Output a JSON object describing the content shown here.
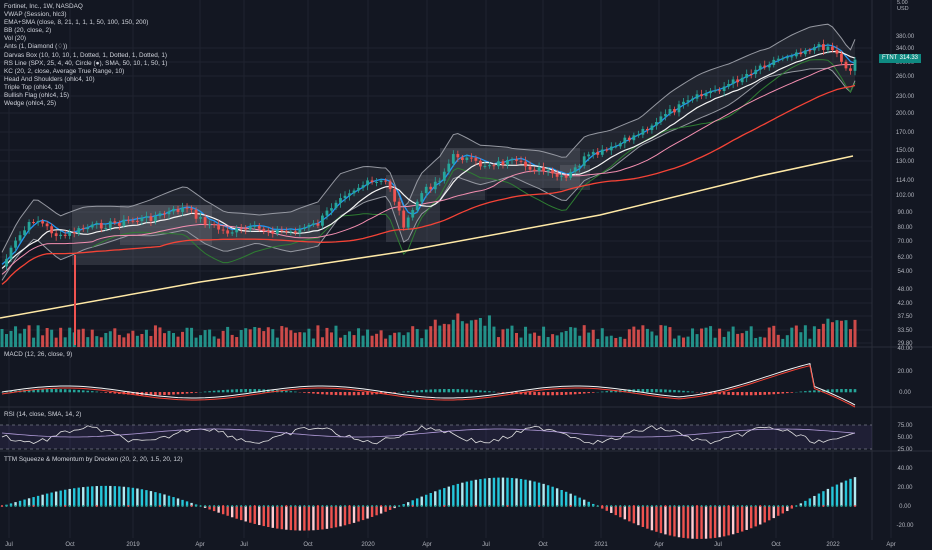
{
  "legend": {
    "title": "Fortinet, Inc., 1W, NASDAQ",
    "indicators": [
      "VWAP (Session, hlc3)",
      "EMA+SMA (close, 8, 21, 1, 1, 1, 50, 100, 150, 200)",
      "BB (20, close, 2)",
      "Vol (20)",
      "Ants (1, Diamond (♢))",
      "Darvas Box (10, 10, 10, 1, Dotted, 1, Dotted, 1, Dotted, 1)",
      "RS Line (SPX, 25, 4, 40, Circle (●), SMA, 50, 10, 1, 50, 1)",
      "KC (20, 2, close, Average True Range, 10)",
      "Head And Shoulders (ohlc4, 10)",
      "Triple Top (ohlc4, 10)",
      "Bullish Flag (ohlc4, 15)",
      "Wedge (ohlc4, 25)"
    ]
  },
  "price_axis": {
    "unit_line1": "5.00",
    "unit_line2": "USD",
    "ticks": [
      "380.00",
      "340.00",
      "300.00",
      "260.00",
      "230.00",
      "200.00",
      "170.00",
      "150.00",
      "130.00",
      "114.00",
      "102.00",
      "90.00",
      "80.00",
      "70.00",
      "62.00",
      "54.00",
      "48.00",
      "42.00",
      "37.50",
      "33.50",
      "29.80"
    ]
  },
  "ticker_badge": {
    "symbol": "FTNT",
    "price": "314.33"
  },
  "panels": {
    "macd": {
      "label": "MACD (12, 26, close, 9)",
      "ticks": [
        "40.00",
        "20.00",
        "0.00"
      ]
    },
    "rsi": {
      "label": "RSI (14, close, SMA, 14, 2)",
      "ticks": [
        "75.00",
        "50.00",
        "25.00"
      ]
    },
    "ttm": {
      "label": "TTM Squeeze & Momentum by Drecken (20, 2, 20, 1.5, 20, 12)",
      "ticks": [
        "40.00",
        "20.00",
        "0.00",
        "-20.00"
      ]
    }
  },
  "time_axis": {
    "labels": [
      "Jul",
      "Oct",
      "2019",
      "Apr",
      "Jul",
      "Oct",
      "2020",
      "Apr",
      "Jul",
      "Oct",
      "2021",
      "Apr",
      "Jul",
      "Oct",
      "2022",
      "Apr"
    ]
  },
  "colors": {
    "background": "#131722",
    "grid": "#1f2330",
    "text": "#b2b5be",
    "up": "#26a69a",
    "down": "#ef5350",
    "ema_fast": "#2196f3",
    "sma_red": "#f44336",
    "sma_200": "#ffe9a6",
    "rs_line": "#2e7d32",
    "badge": "#0f8a82"
  },
  "chart_data": {
    "type": "line",
    "title": "Fortinet, Inc., 1W, NASDAQ",
    "x": [
      "Jul",
      "Oct",
      "2019",
      "Apr",
      "Jul",
      "Oct",
      "2020",
      "Apr",
      "Jul",
      "Oct",
      "2021",
      "Apr",
      "Jul",
      "Oct",
      "2022"
    ],
    "series": [
      {
        "name": "FTNT",
        "values": [
          45,
          82,
          73,
          86,
          78,
          74,
          102,
          92,
          140,
          110,
          150,
          200,
          260,
          340,
          314
        ]
      }
    ],
    "ylim": [
      29.8,
      380
    ],
    "yscale": "log"
  }
}
